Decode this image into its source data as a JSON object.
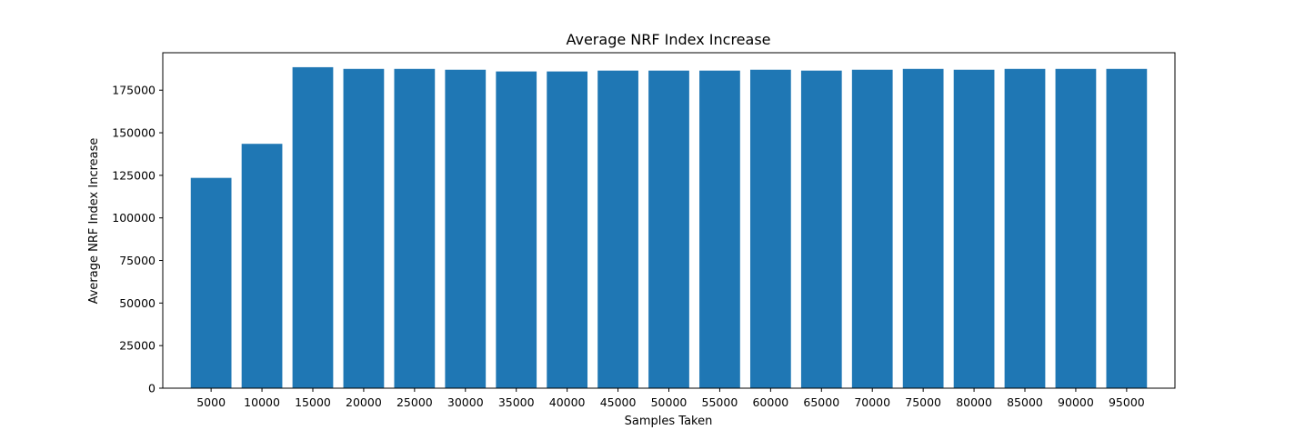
{
  "chart_data": {
    "type": "bar",
    "title": "Average NRF Index Increase",
    "xlabel": "Samples Taken",
    "ylabel": "Average NRF Index Increase",
    "categories": [
      "5000",
      "10000",
      "15000",
      "20000",
      "25000",
      "30000",
      "35000",
      "40000",
      "45000",
      "50000",
      "55000",
      "60000",
      "65000",
      "70000",
      "75000",
      "80000",
      "85000",
      "90000",
      "95000"
    ],
    "values": [
      123500,
      143500,
      188500,
      187500,
      187500,
      187000,
      186000,
      186000,
      186500,
      186500,
      186500,
      187000,
      186500,
      187000,
      187500,
      187000,
      187500,
      187500,
      187500
    ],
    "ylim": [
      0,
      197000
    ],
    "yticks": [
      "0",
      "25000",
      "50000",
      "75000",
      "100000",
      "125000",
      "150000",
      "175000"
    ],
    "bar_color": "#1f77b4",
    "grid": false,
    "legend": false
  }
}
